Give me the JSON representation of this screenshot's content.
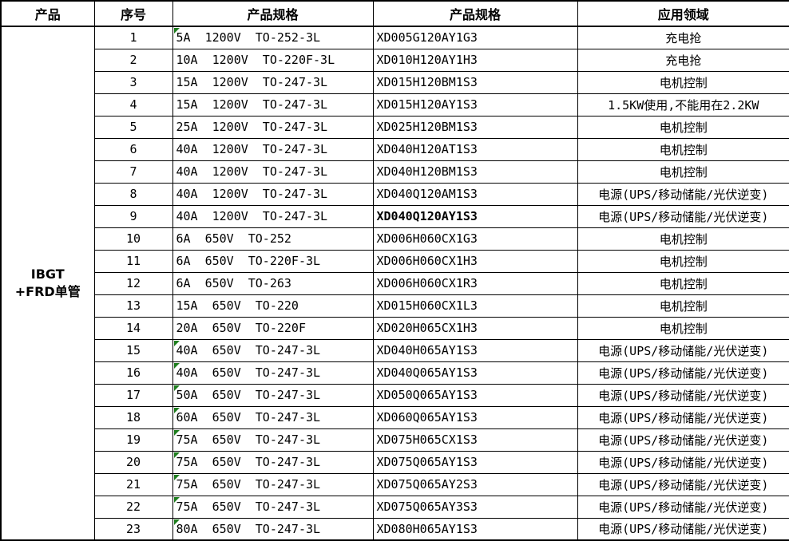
{
  "header": {
    "col_product": "产品",
    "col_no": "序号",
    "col_spec": "产品规格",
    "col_part": "产品规格",
    "col_app": "应用领域"
  },
  "product_group": {
    "label": "IBGT\n+FRD单管"
  },
  "colors": {
    "border": "#000000",
    "background": "#ffffff",
    "text": "#000000",
    "marker_green": "#1e7e1e"
  },
  "rows": [
    {
      "no": "1",
      "spec": "5A 1200V TO-252-3L",
      "part": "XD005G120AY1G3",
      "app": "充电抢",
      "marker": true
    },
    {
      "no": "2",
      "spec": "10A 1200V TO-220F-3L",
      "part": "XD010H120AY1H3",
      "app": "充电抢"
    },
    {
      "no": "3",
      "spec": "15A 1200V TO-247-3L",
      "part": "XD015H120BM1S3",
      "app": "电机控制"
    },
    {
      "no": "4",
      "spec": "15A 1200V TO-247-3L",
      "part": "XD015H120AY1S3",
      "app": "1.5KW使用,不能用在2.2KW"
    },
    {
      "no": "5",
      "spec": "25A 1200V TO-247-3L",
      "part": "XD025H120BM1S3",
      "app": "电机控制"
    },
    {
      "no": "6",
      "spec": "40A 1200V TO-247-3L",
      "part": "XD040H120AT1S3",
      "app": "电机控制"
    },
    {
      "no": "7",
      "spec": "40A 1200V TO-247-3L",
      "part": "XD040H120BM1S3",
      "app": "电机控制"
    },
    {
      "no": "8",
      "spec": "40A 1200V TO-247-3L",
      "part": "XD040Q120AM1S3",
      "app": "电源(UPS/移动储能/光伏逆变)"
    },
    {
      "no": "9",
      "spec": "40A 1200V TO-247-3L",
      "part": "XD040Q120AY1S3",
      "app": "电源(UPS/移动储能/光伏逆变)",
      "part_bold": true
    },
    {
      "no": "10",
      "spec": "6A 650V TO-252",
      "part": "XD006H060CX1G3",
      "app": "电机控制"
    },
    {
      "no": "11",
      "spec": "6A 650V TO-220F-3L",
      "part": "XD006H060CX1H3",
      "app": "电机控制"
    },
    {
      "no": "12",
      "spec": "6A 650V TO-263",
      "part": "XD006H060CX1R3",
      "app": "电机控制"
    },
    {
      "no": "13",
      "spec": "15A 650V TO-220",
      "part": "XD015H060CX1L3",
      "app": "电机控制"
    },
    {
      "no": "14",
      "spec": "20A 650V TO-220F",
      "part": "XD020H065CX1H3",
      "app": "电机控制"
    },
    {
      "no": "15",
      "spec": "40A 650V TO-247-3L",
      "part": "XD040H065AY1S3",
      "app": "电源(UPS/移动储能/光伏逆变)",
      "marker": true
    },
    {
      "no": "16",
      "spec": "40A 650V TO-247-3L",
      "part": "XD040Q065AY1S3",
      "app": "电源(UPS/移动储能/光伏逆变)",
      "marker": true
    },
    {
      "no": "17",
      "spec": "50A 650V TO-247-3L",
      "part": "XD050Q065AY1S3",
      "app": "电源(UPS/移动储能/光伏逆变)",
      "marker": true
    },
    {
      "no": "18",
      "spec": "60A 650V TO-247-3L",
      "part": "XD060Q065AY1S3",
      "app": "电源(UPS/移动储能/光伏逆变)",
      "marker": true
    },
    {
      "no": "19",
      "spec": "75A 650V TO-247-3L",
      "part": "XD075H065CX1S3",
      "app": "电源(UPS/移动储能/光伏逆变)",
      "marker": true
    },
    {
      "no": "20",
      "spec": "75A 650V TO-247-3L",
      "part": "XD075Q065AY1S3",
      "app": "电源(UPS/移动储能/光伏逆变)",
      "marker": true
    },
    {
      "no": "21",
      "spec": "75A 650V TO-247-3L",
      "part": "XD075Q065AY2S3",
      "app": "电源(UPS/移动储能/光伏逆变)",
      "marker": true
    },
    {
      "no": "22",
      "spec": "75A 650V TO-247-3L",
      "part": "XD075Q065AY3S3",
      "app": "电源(UPS/移动储能/光伏逆变)",
      "marker": true
    },
    {
      "no": "23",
      "spec": "80A 650V TO-247-3L",
      "part": "XD080H065AY1S3",
      "app": "电源(UPS/移动储能/光伏逆变)",
      "marker": true
    }
  ]
}
